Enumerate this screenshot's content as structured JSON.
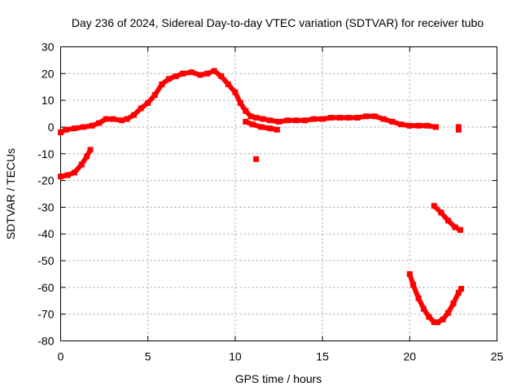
{
  "chart_data": {
    "type": "scatter",
    "title": "Day 236 of 2024, Sidereal Day-to-day VTEC variation (SDTVAR) for receiver tubo",
    "xlabel": "GPS time / hours",
    "ylabel": "SDTVAR / TECUs",
    "xlim": [
      0,
      25
    ],
    "ylim": [
      -80,
      30
    ],
    "xticks": [
      0,
      5,
      10,
      15,
      20,
      25
    ],
    "yticks": [
      -80,
      -70,
      -60,
      -50,
      -40,
      -30,
      -20,
      -10,
      0,
      10,
      20,
      30
    ],
    "grid": true,
    "color": "#ff0000",
    "series": [
      {
        "name": "main-arc",
        "points": [
          [
            0.0,
            -2
          ],
          [
            0.3,
            -1
          ],
          [
            0.8,
            -0.5
          ],
          [
            1.3,
            0
          ],
          [
            1.8,
            0.5
          ],
          [
            2.2,
            1.5
          ],
          [
            2.6,
            3
          ],
          [
            3.0,
            3
          ],
          [
            3.5,
            2.5
          ],
          [
            3.8,
            3
          ],
          [
            4.2,
            4.5
          ],
          [
            4.6,
            7
          ],
          [
            5.0,
            9
          ],
          [
            5.4,
            12
          ],
          [
            5.8,
            16
          ],
          [
            6.2,
            18
          ],
          [
            6.6,
            19
          ],
          [
            7.0,
            20
          ],
          [
            7.5,
            20.5
          ],
          [
            8.0,
            19.5
          ],
          [
            8.4,
            20
          ],
          [
            8.8,
            21
          ],
          [
            9.2,
            19
          ],
          [
            9.6,
            16
          ],
          [
            10.0,
            13
          ],
          [
            10.3,
            9
          ],
          [
            10.6,
            6
          ],
          [
            10.9,
            4
          ],
          [
            11.2,
            3.5
          ],
          [
            11.6,
            3
          ],
          [
            12.0,
            2.5
          ],
          [
            12.5,
            2
          ],
          [
            13.0,
            2.5
          ],
          [
            13.5,
            2.5
          ],
          [
            14.0,
            2.5
          ],
          [
            14.5,
            3
          ],
          [
            15.0,
            3
          ],
          [
            15.5,
            3.5
          ],
          [
            16.0,
            3.5
          ],
          [
            16.5,
            3.5
          ],
          [
            17.0,
            3.5
          ],
          [
            17.5,
            4
          ],
          [
            18.0,
            4
          ],
          [
            18.5,
            3
          ],
          [
            19.0,
            2
          ],
          [
            19.5,
            1
          ],
          [
            20.0,
            0.5
          ],
          [
            20.5,
            0.5
          ],
          [
            21.0,
            0.5
          ],
          [
            21.5,
            0
          ]
        ]
      },
      {
        "name": "dip-segment",
        "points": [
          [
            10.6,
            2
          ],
          [
            11.0,
            1
          ],
          [
            11.5,
            0
          ],
          [
            12.0,
            -0.5
          ],
          [
            12.4,
            -1
          ]
        ]
      },
      {
        "name": "early-segment",
        "points": [
          [
            0.0,
            -18.5
          ],
          [
            0.4,
            -18
          ],
          [
            0.8,
            -17
          ],
          [
            1.2,
            -14
          ],
          [
            1.5,
            -11
          ],
          [
            1.7,
            -8.5
          ]
        ]
      },
      {
        "name": "isolated-1",
        "points": [
          [
            11.2,
            -12
          ]
        ]
      },
      {
        "name": "end-segment",
        "points": [
          [
            21.4,
            -29.5
          ],
          [
            21.8,
            -32
          ],
          [
            22.2,
            -35
          ],
          [
            22.6,
            -37.5
          ],
          [
            22.9,
            -38.5
          ]
        ]
      },
      {
        "name": "v-curve",
        "points": [
          [
            20.0,
            -55
          ],
          [
            20.2,
            -59
          ],
          [
            20.5,
            -64
          ],
          [
            20.8,
            -68
          ],
          [
            21.1,
            -71
          ],
          [
            21.4,
            -73
          ],
          [
            21.6,
            -73
          ],
          [
            21.9,
            -72
          ],
          [
            22.2,
            -69.5
          ],
          [
            22.5,
            -66
          ],
          [
            22.8,
            -62
          ],
          [
            22.95,
            -60.5
          ]
        ]
      },
      {
        "name": "isolated-2",
        "points": [
          [
            22.8,
            0
          ],
          [
            22.8,
            -1
          ]
        ]
      }
    ]
  }
}
